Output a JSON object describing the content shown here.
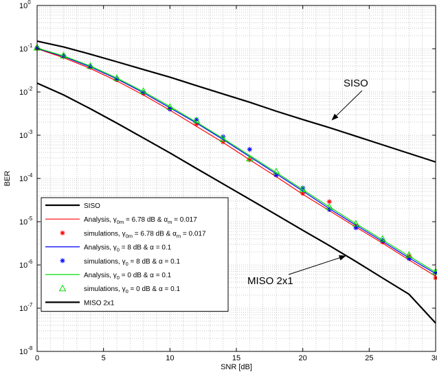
{
  "chart_data": {
    "type": "line",
    "xlabel": "SNR [dB]",
    "ylabel": "BER",
    "xlim": [
      0,
      30
    ],
    "ylim_log10": [
      -8,
      0
    ],
    "y_scale": "log",
    "grid": true,
    "legend_placement": "lower-left",
    "x_ticks": [
      "0",
      "5",
      "10",
      "15",
      "20",
      "25",
      "30"
    ],
    "y_ticks": [
      {
        "base": "10",
        "exp": "0"
      },
      {
        "base": "10",
        "exp": "-1"
      },
      {
        "base": "10",
        "exp": "-2"
      },
      {
        "base": "10",
        "exp": "-3"
      },
      {
        "base": "10",
        "exp": "-4"
      },
      {
        "base": "10",
        "exp": "-5"
      },
      {
        "base": "10",
        "exp": "-6"
      },
      {
        "base": "10",
        "exp": "-7"
      },
      {
        "base": "10",
        "exp": "-8"
      }
    ],
    "annotations": [
      {
        "text": "SISO",
        "point": [
          22,
          0.0021
        ]
      },
      {
        "text": "MISO 2x1",
        "point": [
          23,
          1.5e-06
        ]
      }
    ],
    "series": [
      {
        "name": "SISO",
        "style": "line",
        "color": "#000000",
        "x": [
          0,
          2,
          4,
          6,
          8,
          10,
          12,
          14,
          16,
          18,
          20,
          22,
          24,
          26,
          28,
          30
        ],
        "y": [
          0.15,
          0.11,
          0.075,
          0.05,
          0.033,
          0.022,
          0.014,
          0.009,
          0.0058,
          0.0036,
          0.0023,
          0.0015,
          0.00095,
          0.0006,
          0.00038,
          0.00024
        ]
      },
      {
        "name": "Analysis, γ0m = 6.78 dB & αm = 0.017",
        "style": "line",
        "color": "#ff0000",
        "x": [
          0,
          2,
          4,
          6,
          8,
          10,
          12,
          14,
          16,
          18,
          20,
          22,
          24,
          26,
          28,
          30
        ],
        "y": [
          0.1,
          0.062,
          0.035,
          0.018,
          0.0085,
          0.0038,
          0.0016,
          0.00068,
          0.00027,
          0.00011,
          4.3e-05,
          1.8e-05,
          7.5e-06,
          3.2e-06,
          1.3e-06,
          5.5e-07
        ]
      },
      {
        "name": "simulations, γ0m = 6.78 dB & αm = 0.017",
        "style": "marker",
        "marker": "asterisk",
        "color": "#ff0000",
        "x": [
          0,
          2,
          4,
          6,
          8,
          10,
          12,
          14,
          16,
          18,
          20,
          22,
          24,
          26,
          28,
          30
        ],
        "y": [
          0.1,
          0.065,
          0.037,
          0.019,
          0.0093,
          0.0041,
          0.0018,
          0.0007,
          0.00027,
          0.00012,
          4.5e-05,
          2.9e-05,
          8e-06,
          3.4e-06,
          1.6e-06,
          5e-07
        ]
      },
      {
        "name": "Analysis, γ0 = 8 dB & α = 0.1",
        "style": "line",
        "color": "#0000ff",
        "x": [
          0,
          2,
          4,
          6,
          8,
          10,
          12,
          14,
          16,
          18,
          20,
          22,
          24,
          26,
          28,
          30
        ],
        "y": [
          0.102,
          0.066,
          0.038,
          0.02,
          0.0096,
          0.0043,
          0.0019,
          0.00079,
          0.00032,
          0.000128,
          5.1e-05,
          2e-05,
          8.3e-06,
          3.5e-06,
          1.45e-06,
          6.3e-07
        ]
      },
      {
        "name": "simulations, γ0 = 8 dB & α = 0.1",
        "style": "marker",
        "marker": "asterisk",
        "color": "#0000ff",
        "x": [
          0,
          2,
          4,
          6,
          8,
          10,
          12,
          14,
          16,
          18,
          20,
          22,
          24,
          26,
          28,
          30
        ],
        "y": [
          0.105,
          0.068,
          0.039,
          0.02,
          0.0097,
          0.004,
          0.0023,
          0.00092,
          0.00047,
          0.00012,
          6e-05,
          1.9e-05,
          7.2e-06,
          3.7e-06,
          1.4e-06,
          6.5e-07
        ]
      },
      {
        "name": "Analysis, γ0 = 0 dB & α = 0.1",
        "style": "line",
        "color": "#00dd00",
        "x": [
          0,
          2,
          4,
          6,
          8,
          10,
          12,
          14,
          16,
          18,
          20,
          22,
          24,
          26,
          28,
          30
        ],
        "y": [
          0.104,
          0.068,
          0.04,
          0.021,
          0.0102,
          0.0046,
          0.002,
          0.00084,
          0.00034,
          0.000138,
          5.5e-05,
          2.2e-05,
          9e-06,
          3.8e-06,
          1.6e-06,
          6.8e-07
        ]
      },
      {
        "name": "simulations, γ0 = 0 dB & α = 0.1",
        "style": "marker",
        "marker": "triangle",
        "color": "#00dd00",
        "x": [
          0,
          2,
          4,
          6,
          8,
          10,
          12,
          14,
          16,
          18,
          20,
          22,
          24,
          26,
          28,
          30
        ],
        "y": [
          0.106,
          0.07,
          0.04,
          0.021,
          0.0105,
          0.0045,
          0.0022,
          0.00082,
          0.00029,
          0.000145,
          5.6e-05,
          2.2e-05,
          9e-06,
          4e-06,
          1.7e-06,
          7e-07
        ]
      },
      {
        "name": "MISO 2x1",
        "style": "line",
        "color": "#000000",
        "x": [
          0,
          2,
          4,
          6,
          8,
          10,
          12,
          14,
          16,
          18,
          20,
          22,
          24,
          26,
          28,
          30
        ],
        "y": [
          0.016,
          0.0085,
          0.0041,
          0.0019,
          0.00086,
          0.00039,
          0.00017,
          7.5e-05,
          3.3e-05,
          1.45e-05,
          6.3e-06,
          2.8e-06,
          1.2e-06,
          5e-07,
          2.1e-07,
          4.5e-08
        ]
      }
    ],
    "legend": [
      {
        "series": 0,
        "label": "SISO",
        "sub": []
      },
      {
        "series": 1,
        "parts": [
          "Analysis, γ",
          "0m",
          " = 6.78 dB & α",
          "m",
          " = 0.017"
        ]
      },
      {
        "series": 2,
        "parts": [
          "simulations, γ",
          "0m",
          " = 6.78 dB & α",
          "m",
          " = 0.017"
        ]
      },
      {
        "series": 3,
        "parts": [
          "Analysis, γ",
          "0",
          " = 8 dB & α = 0.1"
        ]
      },
      {
        "series": 4,
        "parts": [
          "simulations, γ",
          "0",
          " = 8 dB & α = 0.1"
        ]
      },
      {
        "series": 5,
        "parts": [
          "Analysis, γ",
          "0",
          " = 0 dB & α = 0.1"
        ]
      },
      {
        "series": 6,
        "parts": [
          "simulations, γ",
          "0",
          " = 0 dB & α = 0.1"
        ]
      },
      {
        "series": 7,
        "label": "MISO 2x1",
        "sub": []
      }
    ]
  }
}
